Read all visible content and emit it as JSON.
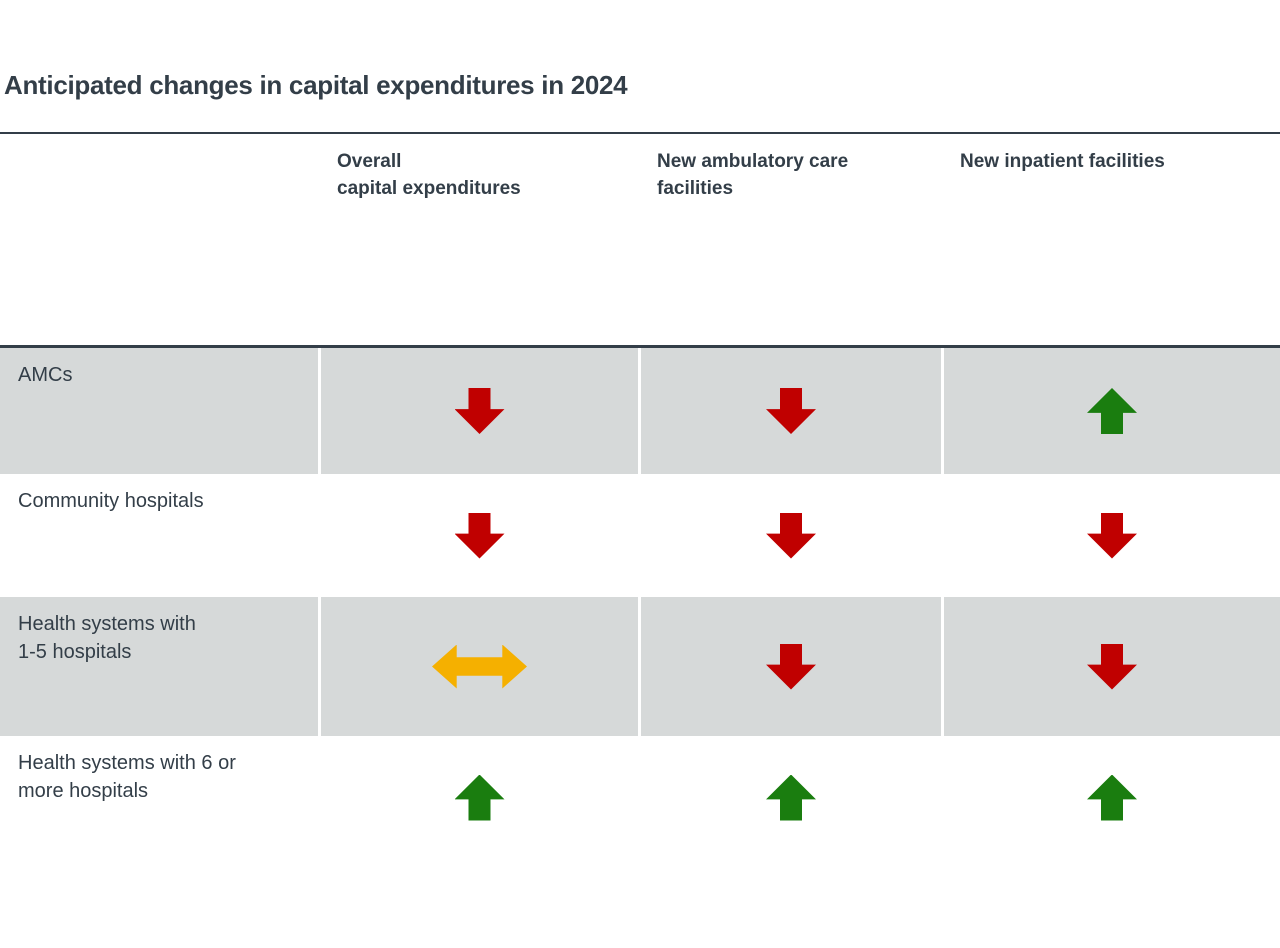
{
  "title": "Anticipated changes in capital expenditures in 2024",
  "colors": {
    "heading_text": "#333E48",
    "row_shading": "#D6D9D9",
    "decrease_red": "#C00000",
    "increase_green": "#1A7D0F",
    "stable_amber": "#F5B000"
  },
  "table": {
    "column_headers": [
      {
        "line1": "Overall",
        "line2": "capital expenditures"
      },
      {
        "line1": "New ambulatory care",
        "line2": "facilities"
      },
      {
        "line1": "New inpatient facilities",
        "line2": ""
      }
    ],
    "rows": [
      {
        "label_line1": "AMCs",
        "label_line2": "",
        "cells": [
          {
            "direction": "down",
            "meaning": "decrease",
            "color": "#C00000"
          },
          {
            "direction": "down",
            "meaning": "decrease",
            "color": "#C00000"
          },
          {
            "direction": "up",
            "meaning": "increase",
            "color": "#1A7D0F"
          }
        ]
      },
      {
        "label_line1": "Community hospitals",
        "label_line2": "",
        "cells": [
          {
            "direction": "down",
            "meaning": "decrease",
            "color": "#C00000"
          },
          {
            "direction": "down",
            "meaning": "decrease",
            "color": "#C00000"
          },
          {
            "direction": "down",
            "meaning": "decrease",
            "color": "#C00000"
          }
        ]
      },
      {
        "label_line1": "Health systems with",
        "label_line2": "1-5 hospitals",
        "cells": [
          {
            "direction": "flat",
            "meaning": "stable",
            "color": "#F5B000"
          },
          {
            "direction": "down",
            "meaning": "decrease",
            "color": "#C00000"
          },
          {
            "direction": "down",
            "meaning": "decrease",
            "color": "#C00000"
          }
        ]
      },
      {
        "label_line1": "Health systems with 6 or",
        "label_line2": "more hospitals",
        "cells": [
          {
            "direction": "up",
            "meaning": "increase",
            "color": "#1A7D0F"
          },
          {
            "direction": "up",
            "meaning": "increase",
            "color": "#1A7D0F"
          },
          {
            "direction": "up",
            "meaning": "increase",
            "color": "#1A7D0F"
          }
        ]
      }
    ]
  },
  "chart_data": {
    "type": "table",
    "title": "Anticipated changes in capital expenditures in 2024",
    "columns": [
      "Overall capital expenditures",
      "New ambulatory care facilities",
      "New inpatient facilities"
    ],
    "rows": [
      "AMCs",
      "Community hospitals",
      "Health systems with 1-5 hospitals",
      "Health systems with 6 or more hospitals"
    ],
    "values": [
      [
        "decrease",
        "decrease",
        "increase"
      ],
      [
        "decrease",
        "decrease",
        "decrease"
      ],
      [
        "stable",
        "decrease",
        "decrease"
      ],
      [
        "increase",
        "increase",
        "increase"
      ]
    ],
    "symbol_key": {
      "decrease": "red downward block arrow",
      "increase": "green upward block arrow",
      "stable": "amber horizontal double-headed block arrow"
    },
    "layout_hints": {
      "shaded_rows": [
        "AMCs",
        "Health systems with 1-5 hospitals"
      ],
      "grid": "off",
      "legend_position": "none"
    }
  }
}
